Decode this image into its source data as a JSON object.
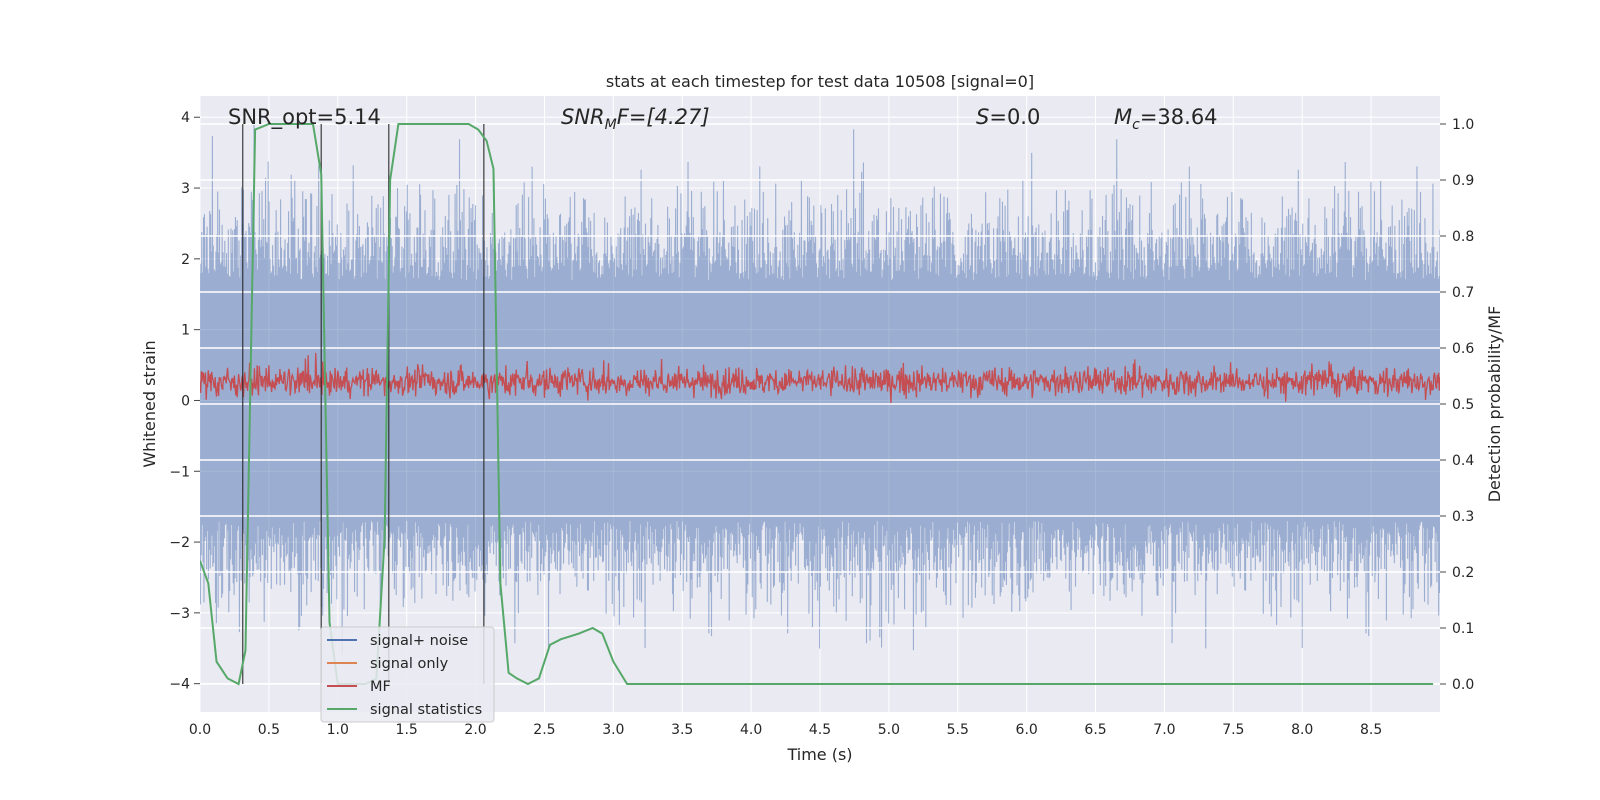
{
  "chart_data": {
    "type": "line",
    "title": "stats at each timestep for test data 10508 [signal=0]",
    "xlabel": "Time (s)",
    "ylabel_left": "Whitened strain",
    "ylabel_right": "Detection probability/MF",
    "xlim": [
      0.0,
      9.0
    ],
    "ylim_left": [
      -4.4,
      4.3
    ],
    "ylim_right": [
      -0.05,
      1.05
    ],
    "x_ticks": [
      "0.0",
      "0.5",
      "1.0",
      "1.5",
      "2.0",
      "2.5",
      "3.0",
      "3.5",
      "4.0",
      "4.5",
      "5.0",
      "5.5",
      "6.0",
      "6.5",
      "7.0",
      "7.5",
      "8.0",
      "8.5"
    ],
    "y_ticks_left": [
      "4",
      "3",
      "2",
      "1",
      "0",
      "−1",
      "−2",
      "−3",
      "−4"
    ],
    "y_ticks_right": [
      "1.0",
      "0.9",
      "0.8",
      "0.7",
      "0.6",
      "0.5",
      "0.4",
      "0.3",
      "0.2",
      "0.1",
      "0.0"
    ],
    "grid": true,
    "legend_position": "lower-left",
    "colors": {
      "signal_noise": "#4c72b0",
      "signal_only": "#dd8452",
      "mf": "#c44e52",
      "statistics": "#55a868",
      "vlines": "#222222",
      "background": "#eaeaf2"
    },
    "annotations": {
      "snr_opt": "SNR_opt=5.14",
      "snr_mf_prefix": "SNR",
      "snr_mf_sub": "M",
      "snr_mf_suffix": "F=[4.27]",
      "s_label": "S",
      "s_value": "=0.0",
      "mc_label": "M",
      "mc_sub": "c",
      "mc_value": "=38.64"
    },
    "series": [
      {
        "name": "signal+ noise",
        "axis": "left",
        "kind": "noise",
        "amplitude_range": [
          -4.0,
          4.0
        ]
      },
      {
        "name": "signal only",
        "axis": "left",
        "kind": "line",
        "x": [],
        "y": []
      },
      {
        "name": "MF",
        "axis": "right",
        "kind": "noise",
        "mean": 0.54,
        "range": [
          0.5,
          0.63
        ]
      },
      {
        "name": "signal statistics",
        "axis": "right",
        "kind": "line",
        "x": [
          0.0,
          0.06,
          0.12,
          0.2,
          0.28,
          0.33,
          0.4,
          0.5,
          0.62,
          0.75,
          0.82,
          0.88,
          0.94,
          1.0,
          1.1,
          1.2,
          1.28,
          1.34,
          1.38,
          1.44,
          1.55,
          1.7,
          1.85,
          1.95,
          2.02,
          2.08,
          2.13,
          2.18,
          2.24,
          2.3,
          2.38,
          2.46,
          2.54,
          2.62,
          2.75,
          2.85,
          2.92,
          3.0,
          3.1,
          3.2,
          3.5,
          4.0,
          5.0,
          6.0,
          7.0,
          8.0,
          8.95
        ],
        "y": [
          0.22,
          0.18,
          0.04,
          0.01,
          0.0,
          0.06,
          0.99,
          1.0,
          1.0,
          1.0,
          1.0,
          0.91,
          0.11,
          0.0,
          0.0,
          0.0,
          0.01,
          0.26,
          0.9,
          1.0,
          1.0,
          1.0,
          1.0,
          1.0,
          0.99,
          0.97,
          0.92,
          0.18,
          0.02,
          0.01,
          0.0,
          0.01,
          0.07,
          0.08,
          0.09,
          0.1,
          0.09,
          0.04,
          0.0,
          0.0,
          0.0,
          0.0,
          0.0,
          0.0,
          0.0,
          0.0,
          0.0
        ]
      }
    ],
    "vlines_x": [
      0.31,
      0.88,
      1.37,
      2.06
    ],
    "legend": [
      "signal+ noise",
      "signal only",
      "MF",
      "signal statistics"
    ]
  }
}
